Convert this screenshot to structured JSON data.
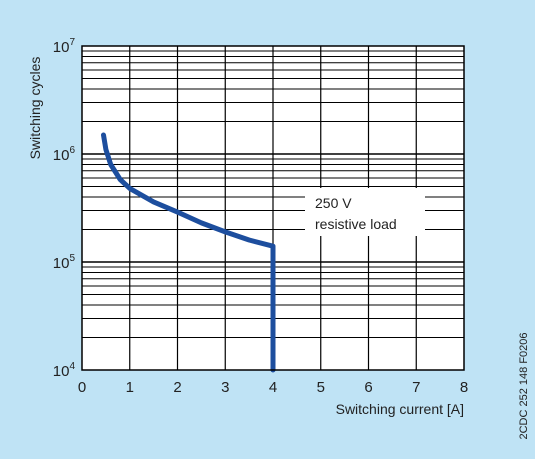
{
  "chart_data": {
    "type": "line",
    "title": "",
    "xlabel": "Switching current [A]",
    "ylabel": "Switching cycles",
    "xlim": [
      0,
      8
    ],
    "ylim": [
      10000,
      10000000
    ],
    "yscale": "log",
    "x_ticks": [
      "0",
      "1",
      "2",
      "3",
      "4",
      "5",
      "6",
      "7",
      "8"
    ],
    "y_ticks": [
      {
        "base": "10",
        "exp": "4",
        "value": 10000
      },
      {
        "base": "10",
        "exp": "5",
        "value": 100000
      },
      {
        "base": "10",
        "exp": "6",
        "value": 1000000
      },
      {
        "base": "10",
        "exp": "7",
        "value": 10000000
      }
    ],
    "grid": true,
    "series": [
      {
        "color": "#1d4e9e",
        "x": [
          0.45,
          0.5,
          0.6,
          0.8,
          1.0,
          1.5,
          2.0,
          2.5,
          3.0,
          3.5,
          4.0,
          4.0
        ],
        "y": [
          1500000,
          1100000,
          800000,
          580000,
          480000,
          360000,
          290000,
          230000,
          190000,
          160000,
          140000,
          10000
        ]
      }
    ],
    "annotation": {
      "line1": "250 V",
      "line2": "resistive load"
    },
    "side_code": "2CDC 252 148 F0206",
    "colors": {
      "background": "#bfe3f5",
      "plot": "#ffffff",
      "grid": "#000000",
      "series": "#1d4e9e"
    }
  }
}
